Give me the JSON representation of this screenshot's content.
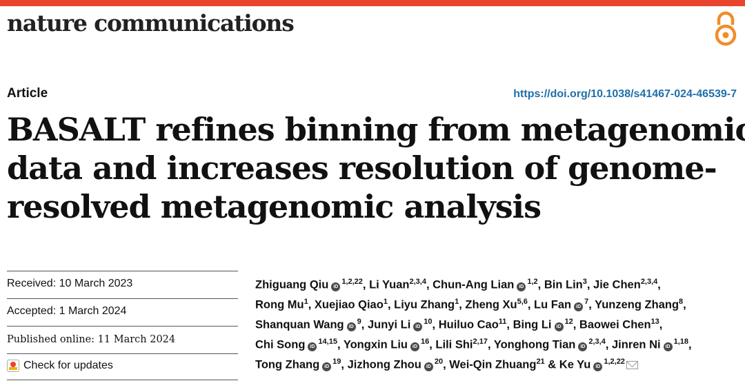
{
  "header": {
    "journal_name": "nature communications",
    "accent_color": "#e8452c",
    "open_access_icon": "open-access-icon"
  },
  "article": {
    "type": "Article",
    "doi": "https://doi.org/10.1038/s41467-024-46539-7",
    "title_lines": [
      "BASALT refines binning from metagenomic",
      "data and increases resolution of genome-",
      "resolved metagenomic analysis"
    ]
  },
  "dates": {
    "received": "Received: 10 March 2023",
    "accepted": "Accepted: 1 March 2024",
    "published": "Published online: 11 March 2024",
    "check_updates": "Check for updates"
  },
  "authors": [
    [
      {
        "name": "Zhiguang Qiu",
        "orcid": true,
        "aff": "1,2,22",
        "sep": ", "
      },
      {
        "name": "Li Yuan",
        "orcid": false,
        "aff": "2,3,4",
        "sep": ", "
      },
      {
        "name": "Chun-Ang Lian",
        "orcid": true,
        "aff": "1,2",
        "sep": ", "
      },
      {
        "name": "Bin Lin",
        "orcid": false,
        "aff": "3",
        "sep": ", "
      },
      {
        "name": "Jie Chen",
        "orcid": false,
        "aff": "2,3,4",
        "sep": ","
      }
    ],
    [
      {
        "name": "Rong Mu",
        "orcid": false,
        "aff": "1",
        "sep": ", "
      },
      {
        "name": "Xuejiao Qiao",
        "orcid": false,
        "aff": "1",
        "sep": ", "
      },
      {
        "name": "Liyu Zhang",
        "orcid": false,
        "aff": "1",
        "sep": ", "
      },
      {
        "name": "Zheng Xu",
        "orcid": false,
        "aff": "5,6",
        "sep": ", "
      },
      {
        "name": "Lu Fan",
        "orcid": true,
        "aff": "7",
        "sep": ", "
      },
      {
        "name": "Yunzeng Zhang",
        "orcid": false,
        "aff": "8",
        "sep": ","
      }
    ],
    [
      {
        "name": "Shanquan Wang",
        "orcid": true,
        "aff": "9",
        "sep": ", "
      },
      {
        "name": "Junyi Li",
        "orcid": true,
        "aff": "10",
        "sep": ", "
      },
      {
        "name": "Huiluo Cao",
        "orcid": false,
        "aff": "11",
        "sep": ", "
      },
      {
        "name": "Bing Li",
        "orcid": true,
        "aff": "12",
        "sep": ", "
      },
      {
        "name": "Baowei Chen",
        "orcid": false,
        "aff": "13",
        "sep": ","
      }
    ],
    [
      {
        "name": "Chi Song",
        "orcid": true,
        "aff": "14,15",
        "sep": ", "
      },
      {
        "name": "Yongxin Liu",
        "orcid": true,
        "aff": "16",
        "sep": ", "
      },
      {
        "name": "Lili Shi",
        "orcid": false,
        "aff": "2,17",
        "sep": ", "
      },
      {
        "name": "Yonghong Tian",
        "orcid": true,
        "aff": "2,3,4",
        "sep": ", "
      },
      {
        "name": "Jinren Ni",
        "orcid": true,
        "aff": "1,18",
        "sep": ","
      }
    ],
    [
      {
        "name": "Tong Zhang",
        "orcid": true,
        "aff": "19",
        "sep": ", "
      },
      {
        "name": "Jizhong Zhou",
        "orcid": true,
        "aff": "20",
        "sep": ", "
      },
      {
        "name": "Wei-Qin Zhuang",
        "orcid": false,
        "aff": "21",
        "sep": " & "
      },
      {
        "name": "Ke Yu",
        "orcid": true,
        "aff": "1,2,22",
        "sep": "",
        "mail": true
      }
    ]
  ]
}
